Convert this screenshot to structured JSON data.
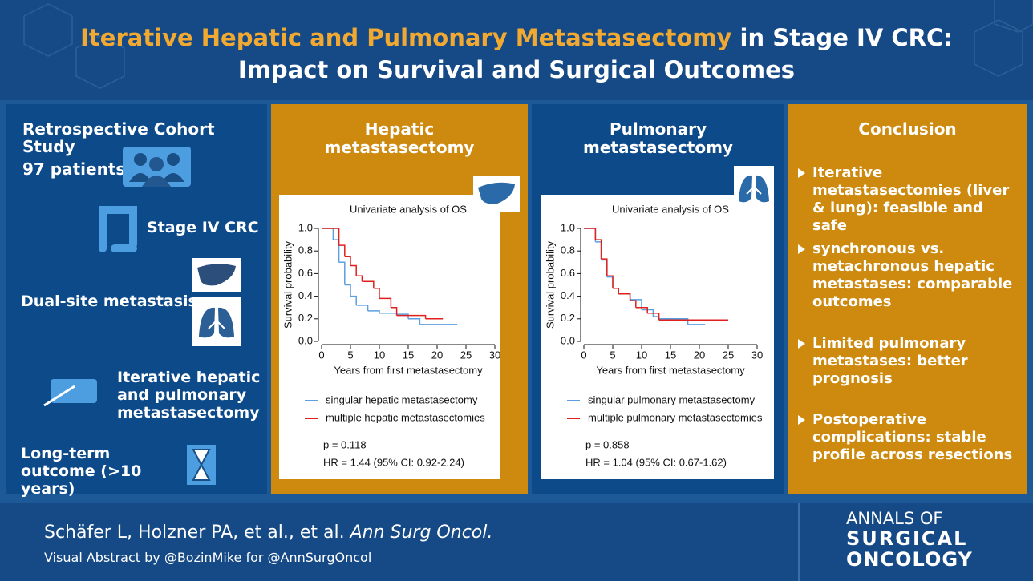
{
  "header": {
    "title_highlight": "Iterative Hepatic and Pulmonary Metastasectomy",
    "title_rest": "in Stage IV CRC:",
    "title_line2": "Impact on Survival and Surgical Outcomes"
  },
  "cohort": {
    "heading": "Retrospective Cohort Study",
    "patients": "97 patients",
    "stage": "Stage IV CRC",
    "dual_site": "Dual-site metastasis",
    "iterative": "Iterative hepatic and pulmonary metastasectomy",
    "long_term": "Long-term outcome (>10 years)"
  },
  "panels": {
    "hepatic": "Hepatic metastasectomy",
    "pulmonary": "Pulmonary metastasectomy"
  },
  "chart_data": [
    {
      "type": "line",
      "title": "Univariate analysis of OS",
      "x_label": "Years from first metastasectomy",
      "y_label": "Survival probability",
      "xlim": [
        0,
        30
      ],
      "ylim": [
        0,
        1
      ],
      "xticks": [
        0,
        5,
        10,
        15,
        20,
        25,
        30
      ],
      "yticks": [
        {
          "value": 0,
          "label": "0.0"
        },
        0.2,
        0.4,
        0.6,
        0.8,
        {
          "value": 1,
          "label": "1.0"
        }
      ],
      "series": [
        {
          "name": "singular hepatic metastasectomy",
          "color": "#5b9fe0",
          "x": [
            0,
            1,
            2,
            3,
            4,
            5,
            6,
            8,
            10,
            13,
            15,
            17,
            23.5
          ],
          "values": [
            1,
            1,
            0.9,
            0.7,
            0.5,
            0.4,
            0.32,
            0.27,
            0.25,
            0.24,
            0.2,
            0.15,
            0.15
          ]
        },
        {
          "name": "multiple hepatic metastasectomies",
          "color": "#e0201c",
          "x": [
            0,
            1.5,
            3,
            4,
            5,
            6,
            7,
            9,
            10,
            12,
            13,
            17,
            18,
            21
          ],
          "values": [
            1,
            1,
            0.85,
            0.75,
            0.67,
            0.58,
            0.53,
            0.47,
            0.38,
            0.3,
            0.23,
            0.23,
            0.2,
            0.2
          ]
        }
      ],
      "annotations": [
        "p = 0.118",
        "HR = 1.44 (95% CI: 0.92-2.24)"
      ]
    },
    {
      "type": "line",
      "title": "Univariate analysis of OS",
      "x_label": "Years from first metastasectomy",
      "y_label": "Survival probability",
      "xlim": [
        0,
        30
      ],
      "ylim": [
        0,
        1
      ],
      "xticks": [
        0,
        5,
        10,
        15,
        20,
        25,
        30
      ],
      "yticks": [
        {
          "value": 0,
          "label": "0.0"
        },
        0.2,
        0.4,
        0.6,
        0.8,
        {
          "value": 1,
          "label": "1.0"
        }
      ],
      "series": [
        {
          "name": "singular pulmonary metastasectomy",
          "color": "#5b9fe0",
          "x": [
            0,
            1,
            2,
            3,
            4,
            5,
            6,
            8,
            10,
            12,
            13,
            17,
            18,
            21
          ],
          "values": [
            1,
            1,
            0.88,
            0.72,
            0.57,
            0.47,
            0.42,
            0.37,
            0.28,
            0.22,
            0.2,
            0.2,
            0.15,
            0.15
          ]
        },
        {
          "name": "multiple pulmonary metastasectomies",
          "color": "#e0201c",
          "x": [
            0,
            1,
            2,
            3,
            4,
            5,
            6,
            8,
            9,
            11,
            13,
            25
          ],
          "values": [
            1,
            1,
            0.9,
            0.73,
            0.58,
            0.47,
            0.42,
            0.36,
            0.3,
            0.25,
            0.19,
            0.19
          ]
        }
      ],
      "annotations": [
        "p = 0.858",
        "HR = 1.04 (95% CI: 0.67-1.62)"
      ]
    }
  ],
  "conclusion": {
    "heading": "Conclusion",
    "points": [
      "Iterative metastasectomies (liver & lung): feasible and safe",
      "synchronous vs. metachronous hepatic metastases: comparable outcomes",
      "Limited pulmonary metastases: better prognosis",
      "Postoperative complications: stable profile across resections"
    ]
  },
  "footer": {
    "authors": "Schäfer L, Holzner PA, et al., et al.",
    "journal": "Ann Surg Oncol.",
    "credit": "Visual Abstract by @BozinMike for @AnnSurgOncol",
    "logo": [
      "ANNALS OF",
      "SURGICAL",
      "ONCOLOGY"
    ]
  }
}
